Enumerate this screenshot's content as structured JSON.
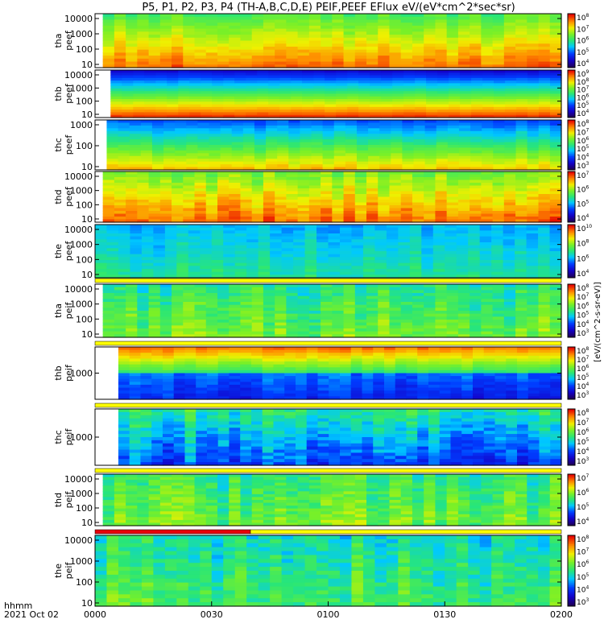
{
  "title": "P5, P1, P2, P3, P4 (TH-A,B,C,D,E) PEIF,PEEF EFlux eV/(eV*cm^2*sec*sr)",
  "time_axis": {
    "row_label_1": "hhmm",
    "row_label_2": "2021 Oct 02",
    "tick_labels": [
      "0000",
      "0030",
      "0100",
      "0130",
      "0200"
    ],
    "range_min": [
      0,
      120
    ]
  },
  "colorbar_label": "[eV/(cm^2-s-sr-eV)]",
  "chart_data": {
    "type": "heatmap",
    "xlabel": "hhmm",
    "panels": [
      {
        "ylabel": "tha peef",
        "yticks": [
          "10",
          "100",
          "1000",
          "10000"
        ],
        "cbar_ticks": [
          "10^4",
          "10^5",
          "10^6",
          "10^7",
          "10^8"
        ],
        "start_min": 2
      },
      {
        "ylabel": "thb peef",
        "yticks": [
          "10",
          "100",
          "1000",
          "10000"
        ],
        "cbar_ticks": [
          "10^4",
          "10^5",
          "10^6",
          "10^7",
          "10^8",
          "10^9"
        ],
        "start_min": 4
      },
      {
        "ylabel": "thc peef",
        "yticks": [
          "10",
          "100",
          "1000"
        ],
        "cbar_ticks": [
          "10^3",
          "10^4",
          "10^5",
          "10^6",
          "10^7",
          "10^8"
        ],
        "start_min": 3
      },
      {
        "ylabel": "thd peef",
        "yticks": [
          "10",
          "100",
          "1000",
          "10000"
        ],
        "cbar_ticks": [
          "10^4",
          "10^5",
          "10^6",
          "10^7"
        ],
        "start_min": 2
      },
      {
        "ylabel": "the peef",
        "yticks": [
          "10",
          "100",
          "1000",
          "10000"
        ],
        "cbar_ticks": [
          "10^4",
          "10^6",
          "10^8",
          "10^10"
        ],
        "start_min": 0
      },
      {
        "ylabel": "tha peif",
        "yticks": [
          "10",
          "100",
          "1000",
          "10000"
        ],
        "cbar_ticks": [
          "10^3",
          "10^4",
          "10^5",
          "10^6",
          "10^7",
          "10^8"
        ],
        "start_min": 2
      },
      {
        "ylabel": "thb peif",
        "yticks": [
          "1000"
        ],
        "cbar_ticks": [
          "10^3",
          "10^4",
          "10^5",
          "10^6",
          "10^7",
          "10^8"
        ],
        "start_min": 6
      },
      {
        "ylabel": "thc peif",
        "yticks": [
          "1000"
        ],
        "cbar_ticks": [
          "10^3",
          "10^4",
          "10^5",
          "10^6",
          "10^7",
          "10^8"
        ],
        "start_min": 6
      },
      {
        "ylabel": "thd peif",
        "yticks": [
          "10",
          "100",
          "1000",
          "10000"
        ],
        "cbar_ticks": [
          "10^4",
          "10^5",
          "10^6",
          "10^7"
        ],
        "start_min": 2
      },
      {
        "ylabel": "the peif",
        "yticks": [
          "10",
          "100",
          "1000",
          "10000"
        ],
        "cbar_ticks": [
          "10^3",
          "10^4",
          "10^5",
          "10^6",
          "10^7",
          "10^8"
        ],
        "start_min": 0
      }
    ],
    "bars": [
      {
        "after_panel": 5,
        "segments": [
          {
            "from": 0,
            "to": 120,
            "color": "#ffff00"
          }
        ]
      },
      {
        "after_panel": 6,
        "segments": [
          {
            "from": 0,
            "to": 120,
            "color": "#ffff00"
          }
        ]
      },
      {
        "after_panel": 7,
        "segments": [
          {
            "from": 0,
            "to": 120,
            "color": "#ffff00"
          }
        ]
      },
      {
        "after_panel": 8,
        "segments": [
          {
            "from": 0,
            "to": 120,
            "color": "#ffff00"
          }
        ]
      },
      {
        "after_panel": 9,
        "segments": [
          {
            "from": 0,
            "to": 40,
            "color": "#e8000b"
          },
          {
            "from": 40,
            "to": 120,
            "color": "#ffff00"
          }
        ]
      }
    ]
  }
}
